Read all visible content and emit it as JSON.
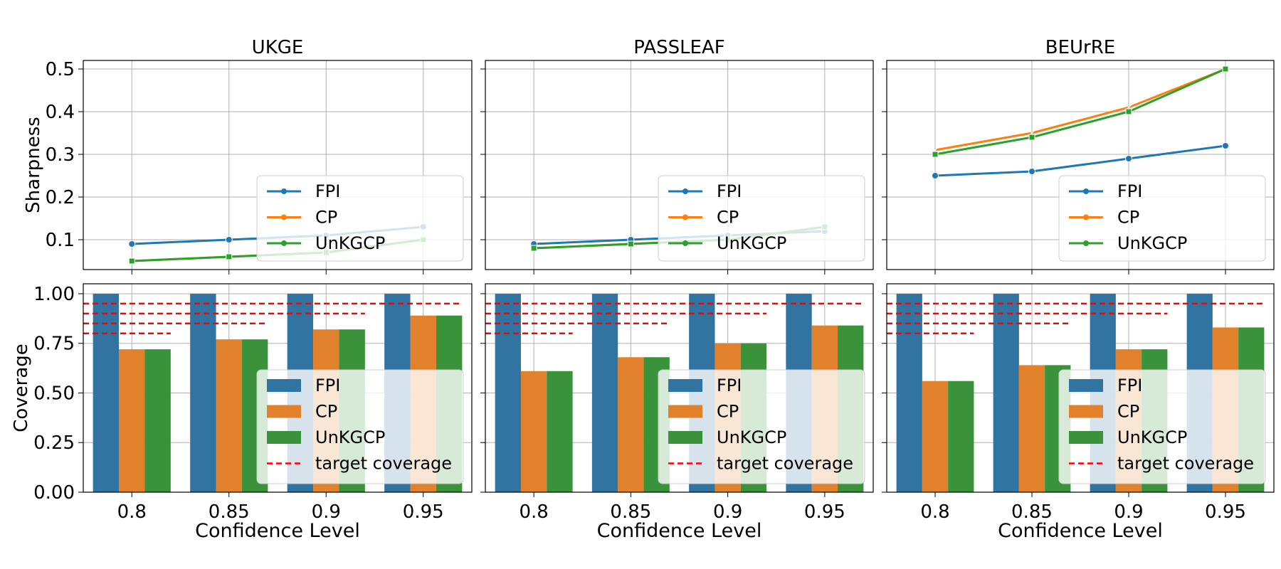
{
  "chart_data": {
    "type": "line+bar grid",
    "x_label": "Confidence Level",
    "categories": [
      "0.8",
      "0.85",
      "0.9",
      "0.95"
    ],
    "target_coverage": [
      0.8,
      0.85,
      0.9,
      0.95
    ],
    "colors": {
      "FPI": "#1f77b4",
      "CP": "#ff7f0e",
      "UnKGCP": "#2ca02c",
      "target": "#ff0000",
      "bar_FPI": "#3274a1",
      "bar_CP": "#e1812c",
      "bar_UnKGCP": "#3a923a"
    },
    "top_row": {
      "ylabel": "Sharpness",
      "ylim": [
        0.03,
        0.52
      ],
      "yticks": [
        "0.1",
        "0.2",
        "0.3",
        "0.4",
        "0.5"
      ],
      "legend": [
        "FPI",
        "CP",
        "UnKGCP"
      ]
    },
    "bottom_row": {
      "ylabel": "Coverage",
      "ylim": [
        0,
        1.05
      ],
      "yticks": [
        "0.00",
        "0.25",
        "0.50",
        "0.75",
        "1.00"
      ],
      "legend": [
        "FPI",
        "CP",
        "UnKGCP",
        "target coverage"
      ]
    },
    "panels": [
      {
        "title": "UKGE",
        "sharpness": {
          "FPI": [
            0.09,
            0.1,
            0.11,
            0.13
          ],
          "CP": [
            0.05,
            0.06,
            0.07,
            0.1
          ],
          "UnKGCP": [
            0.05,
            0.06,
            0.07,
            0.1
          ]
        },
        "coverage": {
          "FPI": [
            1.0,
            1.0,
            1.0,
            1.0
          ],
          "CP": [
            0.72,
            0.77,
            0.82,
            0.89
          ],
          "UnKGCP": [
            0.72,
            0.77,
            0.82,
            0.89
          ]
        }
      },
      {
        "title": "PASSLEAF",
        "sharpness": {
          "FPI": [
            0.09,
            0.1,
            0.11,
            0.12
          ],
          "CP": [
            0.08,
            0.09,
            0.1,
            0.13
          ],
          "UnKGCP": [
            0.08,
            0.09,
            0.1,
            0.13
          ]
        },
        "coverage": {
          "FPI": [
            1.0,
            1.0,
            1.0,
            1.0
          ],
          "CP": [
            0.61,
            0.68,
            0.75,
            0.84
          ],
          "UnKGCP": [
            0.61,
            0.68,
            0.75,
            0.84
          ]
        }
      },
      {
        "title": "BEUrRE",
        "sharpness": {
          "FPI": [
            0.25,
            0.26,
            0.29,
            0.32
          ],
          "CP": [
            0.31,
            0.35,
            0.41,
            0.5
          ],
          "UnKGCP": [
            0.3,
            0.34,
            0.4,
            0.5
          ]
        },
        "coverage": {
          "FPI": [
            1.0,
            1.0,
            1.0,
            1.0
          ],
          "CP": [
            0.56,
            0.64,
            0.72,
            0.83
          ],
          "UnKGCP": [
            0.56,
            0.64,
            0.72,
            0.83
          ]
        }
      }
    ]
  }
}
